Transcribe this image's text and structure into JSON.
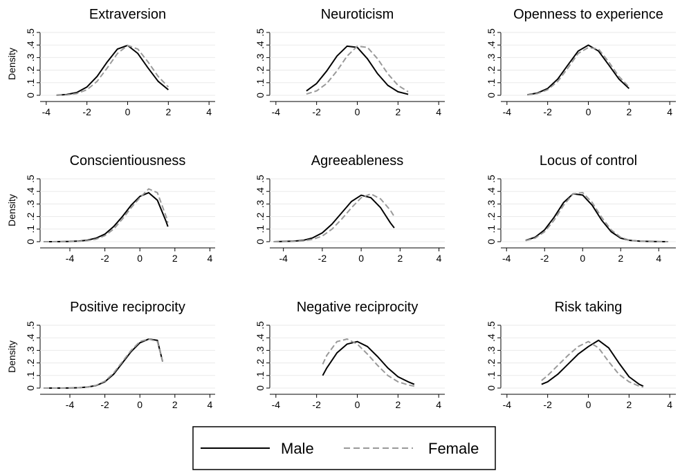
{
  "chart_data": [
    {
      "type": "line",
      "title": "Extraversion",
      "ylabel": "Density",
      "grid": true,
      "xlim": [
        -4.3,
        4.3
      ],
      "xticks": [
        -4,
        -2,
        0,
        2,
        4
      ],
      "ylim": [
        0,
        0.5
      ],
      "yticks": [
        0,
        {
          "value": 0.1,
          "label": ".1"
        },
        {
          "value": 0.2,
          "label": ".2"
        },
        {
          "value": 0.3,
          "label": ".3"
        },
        {
          "value": 0.4,
          "label": ".4"
        },
        {
          "value": 0.5,
          "label": ".5"
        }
      ],
      "x": [
        -3.5,
        -3,
        -2.5,
        -2,
        -1.5,
        -1,
        -0.5,
        0,
        0.5,
        1,
        1.5,
        2
      ],
      "series": [
        {
          "name": "Male",
          "color": "#000000",
          "dashed": false,
          "values": [
            0.001,
            0.006,
            0.022,
            0.066,
            0.15,
            0.266,
            0.368,
            0.397,
            0.333,
            0.218,
            0.111,
            0.044
          ]
        },
        {
          "name": "Female",
          "color": "#999999",
          "dashed": true,
          "values": [
            0.001,
            0.003,
            0.014,
            0.044,
            0.111,
            0.218,
            0.333,
            0.397,
            0.368,
            0.266,
            0.15,
            0.066
          ]
        }
      ]
    },
    {
      "type": "line",
      "title": "Neuroticism",
      "grid": true,
      "xlim": [
        -4.3,
        4.3
      ],
      "xticks": [
        -4,
        -2,
        0,
        2,
        4
      ],
      "ylim": [
        0,
        0.5
      ],
      "yticks": [
        0,
        {
          "value": 0.1,
          "label": ".1"
        },
        {
          "value": 0.2,
          "label": ".2"
        },
        {
          "value": 0.3,
          "label": ".3"
        },
        {
          "value": 0.4,
          "label": ".4"
        },
        {
          "value": 0.5,
          "label": ".5"
        }
      ],
      "x": [
        -2.5,
        -2,
        -1.5,
        -1,
        -0.5,
        0,
        0.5,
        1,
        1.5,
        2,
        2.5
      ],
      "series": [
        {
          "name": "Male",
          "color": "#000000",
          "dashed": false,
          "values": [
            0.035,
            0.094,
            0.194,
            0.312,
            0.391,
            0.381,
            0.29,
            0.171,
            0.079,
            0.028,
            0.008
          ]
        },
        {
          "name": "Female",
          "color": "#999999",
          "dashed": true,
          "values": [
            0.01,
            0.035,
            0.094,
            0.194,
            0.312,
            0.391,
            0.381,
            0.29,
            0.171,
            0.079,
            0.028
          ]
        }
      ]
    },
    {
      "type": "line",
      "title": "Openness to experience",
      "grid": true,
      "xlim": [
        -4.3,
        4.3
      ],
      "xticks": [
        -4,
        -2,
        0,
        2,
        4
      ],
      "ylim": [
        0,
        0.5
      ],
      "yticks": [
        0,
        {
          "value": 0.1,
          "label": ".1"
        },
        {
          "value": 0.2,
          "label": ".2"
        },
        {
          "value": 0.3,
          "label": ".3"
        },
        {
          "value": 0.4,
          "label": ".4"
        },
        {
          "value": 0.5,
          "label": ".5"
        }
      ],
      "x": [
        -3,
        -2.5,
        -2,
        -1.5,
        -1,
        -0.5,
        0,
        0.5,
        1,
        1.5,
        2
      ],
      "series": [
        {
          "name": "Male",
          "color": "#000000",
          "dashed": false,
          "values": [
            0.004,
            0.018,
            0.054,
            0.13,
            0.242,
            0.352,
            0.399,
            0.352,
            0.242,
            0.13,
            0.054
          ]
        },
        {
          "name": "Female",
          "color": "#999999",
          "dashed": true,
          "values": [
            0.003,
            0.014,
            0.044,
            0.111,
            0.218,
            0.333,
            0.38,
            0.368,
            0.266,
            0.15,
            0.066
          ]
        }
      ]
    },
    {
      "type": "line",
      "title": "Conscientiousness",
      "ylabel": "Density",
      "grid": true,
      "xlim": [
        -5.7,
        4.3
      ],
      "xticks": [
        -4,
        -2,
        0,
        2,
        4
      ],
      "ylim": [
        0,
        0.5
      ],
      "yticks": [
        0,
        {
          "value": 0.1,
          "label": ".1"
        },
        {
          "value": 0.2,
          "label": ".2"
        },
        {
          "value": 0.3,
          "label": ".3"
        },
        {
          "value": 0.4,
          "label": ".4"
        },
        {
          "value": 0.5,
          "label": ".5"
        }
      ],
      "x": [
        -5.5,
        -5,
        -4.5,
        -4,
        -3.5,
        -3,
        -2.5,
        -2,
        -1.5,
        -1,
        -0.5,
        0,
        0.5,
        1,
        1.5,
        1.6
      ],
      "series": [
        {
          "name": "Male",
          "color": "#000000",
          "dashed": false,
          "values": [
            0.0,
            0.0,
            0.001,
            0.002,
            0.005,
            0.012,
            0.028,
            0.06,
            0.12,
            0.2,
            0.29,
            0.36,
            0.39,
            0.33,
            0.16,
            0.12
          ]
        },
        {
          "name": "Female",
          "color": "#999999",
          "dashed": true,
          "values": [
            0.0,
            0.0,
            0.0,
            0.001,
            0.003,
            0.008,
            0.02,
            0.048,
            0.1,
            0.18,
            0.27,
            0.35,
            0.42,
            0.39,
            0.2,
            0.15
          ]
        }
      ]
    },
    {
      "type": "line",
      "title": "Agreeableness",
      "grid": true,
      "xlim": [
        -4.7,
        4.3
      ],
      "xticks": [
        -4,
        -2,
        0,
        2,
        4
      ],
      "ylim": [
        0,
        0.5
      ],
      "yticks": [
        0,
        {
          "value": 0.1,
          "label": ".1"
        },
        {
          "value": 0.2,
          "label": ".2"
        },
        {
          "value": 0.3,
          "label": ".3"
        },
        {
          "value": 0.4,
          "label": ".4"
        },
        {
          "value": 0.5,
          "label": ".5"
        }
      ],
      "x": [
        -4.5,
        -4,
        -3.5,
        -3,
        -2.5,
        -2,
        -1.5,
        -1,
        -0.5,
        0,
        0.5,
        1,
        1.5,
        1.7
      ],
      "series": [
        {
          "name": "Male",
          "color": "#000000",
          "dashed": false,
          "values": [
            0.0,
            0.002,
            0.004,
            0.01,
            0.03,
            0.07,
            0.14,
            0.23,
            0.32,
            0.37,
            0.35,
            0.27,
            0.15,
            0.11
          ]
        },
        {
          "name": "Female",
          "color": "#999999",
          "dashed": true,
          "values": [
            0.0,
            0.001,
            0.002,
            0.006,
            0.018,
            0.045,
            0.1,
            0.18,
            0.27,
            0.35,
            0.38,
            0.34,
            0.25,
            0.2
          ]
        }
      ]
    },
    {
      "type": "line",
      "title": "Locus of control",
      "grid": true,
      "xlim": [
        -4.3,
        4.9
      ],
      "xticks": [
        -4,
        -2,
        0,
        2,
        4
      ],
      "ylim": [
        0,
        0.5
      ],
      "yticks": [
        0,
        {
          "value": 0.1,
          "label": ".1"
        },
        {
          "value": 0.2,
          "label": ".2"
        },
        {
          "value": 0.3,
          "label": ".3"
        },
        {
          "value": 0.4,
          "label": ".4"
        },
        {
          "value": 0.5,
          "label": ".5"
        }
      ],
      "x": [
        -3,
        -2.5,
        -2,
        -1.5,
        -1,
        -0.5,
        0,
        0.5,
        1,
        1.5,
        2,
        2.5,
        3,
        3.5,
        4,
        4.5
      ],
      "series": [
        {
          "name": "Male",
          "color": "#000000",
          "dashed": false,
          "values": [
            0.01,
            0.035,
            0.094,
            0.194,
            0.312,
            0.381,
            0.371,
            0.29,
            0.171,
            0.079,
            0.028,
            0.01,
            0.004,
            0.002,
            0.001,
            0.0
          ]
        },
        {
          "name": "Female",
          "color": "#999999",
          "dashed": true,
          "values": [
            0.008,
            0.028,
            0.079,
            0.171,
            0.29,
            0.381,
            0.391,
            0.312,
            0.194,
            0.094,
            0.035,
            0.01,
            0.003,
            0.001,
            0.0,
            0.0
          ]
        }
      ]
    },
    {
      "type": "line",
      "title": "Positive reciprocity",
      "ylabel": "Density",
      "grid": true,
      "xlim": [
        -5.7,
        4.3
      ],
      "xticks": [
        -4,
        -2,
        0,
        2,
        4
      ],
      "ylim": [
        0,
        0.5
      ],
      "yticks": [
        0,
        {
          "value": 0.1,
          "label": ".1"
        },
        {
          "value": 0.2,
          "label": ".2"
        },
        {
          "value": 0.3,
          "label": ".3"
        },
        {
          "value": 0.4,
          "label": ".4"
        },
        {
          "value": 0.5,
          "label": ".5"
        }
      ],
      "x": [
        -5.5,
        -5,
        -4.5,
        -4,
        -3.5,
        -3,
        -2.5,
        -2,
        -1.5,
        -1,
        -0.5,
        0,
        0.5,
        1,
        1.3
      ],
      "series": [
        {
          "name": "Male",
          "color": "#000000",
          "dashed": false,
          "values": [
            0.0,
            0.0,
            0.0,
            0.001,
            0.003,
            0.008,
            0.02,
            0.05,
            0.11,
            0.2,
            0.29,
            0.36,
            0.39,
            0.38,
            0.21
          ]
        },
        {
          "name": "Female",
          "color": "#999999",
          "dashed": true,
          "values": [
            0.0,
            0.0,
            0.0,
            0.001,
            0.003,
            0.008,
            0.022,
            0.055,
            0.12,
            0.21,
            0.3,
            0.37,
            0.39,
            0.37,
            0.21
          ]
        }
      ]
    },
    {
      "type": "line",
      "title": "Negative reciprocity",
      "grid": true,
      "xlim": [
        -4.3,
        4.3
      ],
      "xticks": [
        -4,
        -2,
        0,
        2,
        4
      ],
      "ylim": [
        0,
        0.5
      ],
      "yticks": [
        0,
        {
          "value": 0.1,
          "label": ".1"
        },
        {
          "value": 0.2,
          "label": ".2"
        },
        {
          "value": 0.3,
          "label": ".3"
        },
        {
          "value": 0.4,
          "label": ".4"
        },
        {
          "value": 0.5,
          "label": ".5"
        }
      ],
      "x": [
        -1.7,
        -1.5,
        -1,
        -0.5,
        0,
        0.5,
        1,
        1.5,
        2,
        2.5,
        2.8
      ],
      "series": [
        {
          "name": "Male",
          "color": "#000000",
          "dashed": false,
          "values": [
            0.1,
            0.16,
            0.28,
            0.35,
            0.37,
            0.33,
            0.25,
            0.16,
            0.09,
            0.05,
            0.03
          ]
        },
        {
          "name": "Female",
          "color": "#999999",
          "dashed": true,
          "values": [
            0.19,
            0.26,
            0.37,
            0.39,
            0.35,
            0.27,
            0.18,
            0.1,
            0.05,
            0.025,
            0.015
          ]
        }
      ]
    },
    {
      "type": "line",
      "title": "Risk taking",
      "grid": true,
      "xlim": [
        -4.3,
        4.3
      ],
      "xticks": [
        -4,
        -2,
        0,
        2,
        4
      ],
      "ylim": [
        0,
        0.5
      ],
      "yticks": [
        0,
        {
          "value": 0.1,
          "label": ".1"
        },
        {
          "value": 0.2,
          "label": ".2"
        },
        {
          "value": 0.3,
          "label": ".3"
        },
        {
          "value": 0.4,
          "label": ".4"
        },
        {
          "value": 0.5,
          "label": ".5"
        }
      ],
      "x": [
        -2.3,
        -2,
        -1.5,
        -1,
        -0.5,
        0,
        0.5,
        1,
        1.5,
        2,
        2.5,
        2.7
      ],
      "series": [
        {
          "name": "Male",
          "color": "#000000",
          "dashed": false,
          "values": [
            0.03,
            0.05,
            0.11,
            0.19,
            0.27,
            0.33,
            0.38,
            0.32,
            0.2,
            0.09,
            0.03,
            0.015
          ]
        },
        {
          "name": "Female",
          "color": "#999999",
          "dashed": true,
          "values": [
            0.06,
            0.1,
            0.18,
            0.26,
            0.33,
            0.37,
            0.32,
            0.21,
            0.11,
            0.05,
            0.015,
            0.008
          ]
        }
      ]
    }
  ]
}
